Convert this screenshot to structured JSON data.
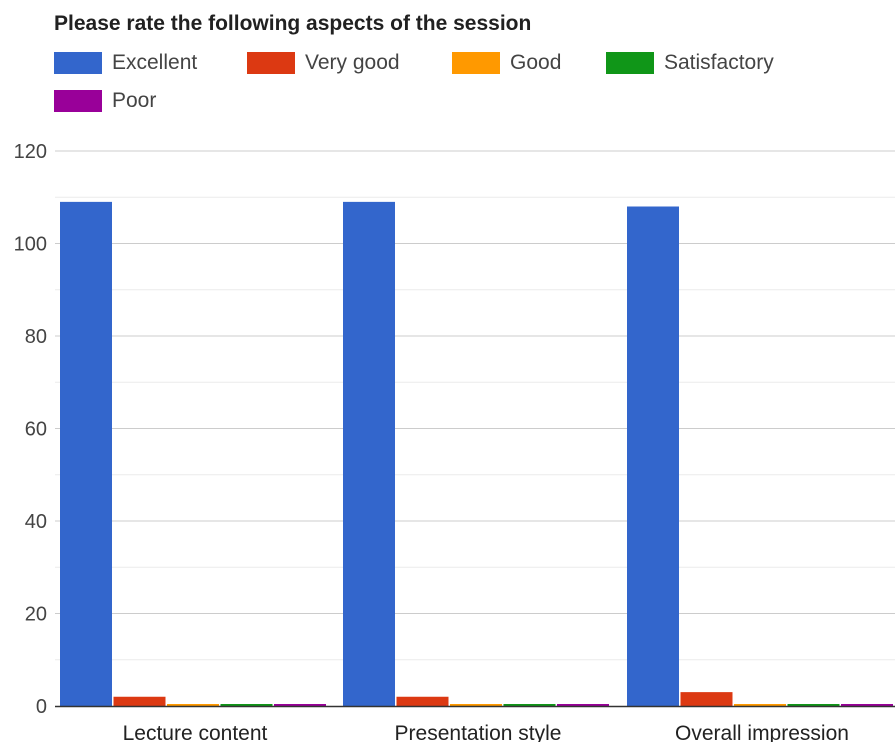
{
  "chart_data": {
    "type": "bar",
    "title": "Please rate the following aspects of the session",
    "categories": [
      "Lecture content",
      "Presentation style",
      "Overall impression"
    ],
    "series": [
      {
        "name": "Excellent",
        "color": "#3366cc",
        "values": [
          109,
          109,
          108
        ]
      },
      {
        "name": "Very good",
        "color": "#dc3912",
        "values": [
          2,
          2,
          3
        ]
      },
      {
        "name": "Good",
        "color": "#ff9900",
        "values": [
          0,
          0,
          0
        ]
      },
      {
        "name": "Satisfactory",
        "color": "#109618",
        "values": [
          0,
          0,
          0
        ]
      },
      {
        "name": "Poor",
        "color": "#990099",
        "values": [
          0,
          0,
          0
        ]
      }
    ],
    "ylim": [
      0,
      120
    ],
    "yticks": [
      0,
      20,
      40,
      60,
      80,
      100,
      120
    ],
    "grid": true,
    "legend_position": "top"
  }
}
